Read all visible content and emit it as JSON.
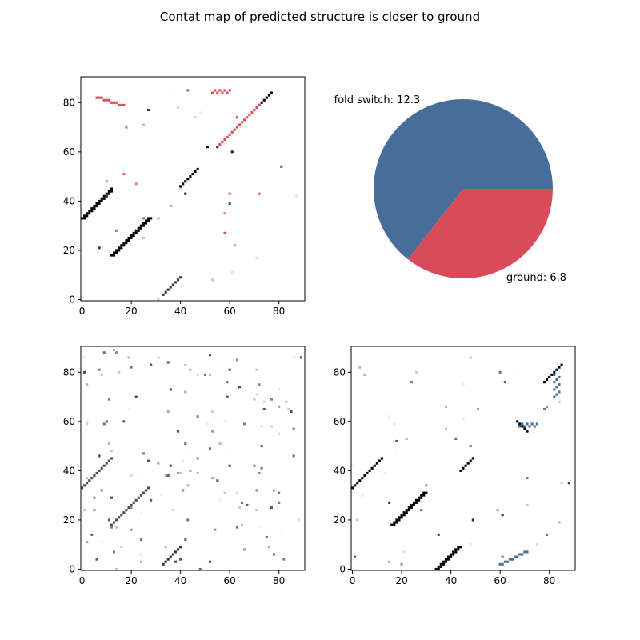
{
  "title": "Contat map of predicted structure is closer to ground",
  "colors": {
    "ground": "#d94b5a",
    "fold_switch": "#476d9a",
    "contact": "#000000"
  },
  "chart_data": [
    {
      "type": "heatmap",
      "name": "ground-vs-predicted-contact-map",
      "xlim": [
        0,
        90
      ],
      "ylim": [
        0,
        90
      ],
      "xticks": [
        0,
        20,
        40,
        60,
        80
      ],
      "yticks": [
        0,
        20,
        40,
        60,
        80
      ],
      "overlay_color": "ground"
    },
    {
      "type": "pie",
      "labels": [
        "fold switch",
        "ground"
      ],
      "values": [
        12.3,
        6.8
      ],
      "label_text": [
        "fold switch: 12.3",
        "ground: 6.8"
      ],
      "colors": [
        "#476d9a",
        "#d94b5a"
      ]
    },
    {
      "type": "heatmap",
      "name": "predicted-contact-map",
      "xlim": [
        0,
        90
      ],
      "ylim": [
        0,
        90
      ],
      "xticks": [
        0,
        20,
        40,
        60,
        80
      ],
      "yticks": [
        0,
        20,
        40,
        60,
        80
      ],
      "overlay_color": "none"
    },
    {
      "type": "heatmap",
      "name": "fold-switch-vs-predicted-contact-map",
      "xlim": [
        0,
        90
      ],
      "ylim": [
        0,
        90
      ],
      "xticks": [
        0,
        20,
        40,
        60,
        80
      ],
      "yticks": [
        0,
        20,
        40,
        60,
        80
      ],
      "overlay_color": "fold_switch"
    }
  ]
}
